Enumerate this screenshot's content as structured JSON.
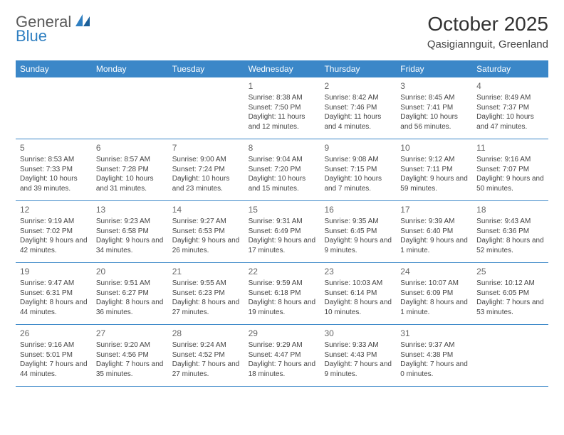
{
  "logo": {
    "text1": "General",
    "text2": "Blue"
  },
  "title": "October 2025",
  "location": "Qasigiannguit, Greenland",
  "colors": {
    "header_bg": "#3b87c8",
    "header_fg": "#ffffff",
    "border": "#3b87c8",
    "text": "#444444",
    "daynum": "#666666",
    "logo_gray": "#5a5a5a",
    "logo_blue": "#2f7fc1",
    "page_bg": "#ffffff"
  },
  "day_names": [
    "Sunday",
    "Monday",
    "Tuesday",
    "Wednesday",
    "Thursday",
    "Friday",
    "Saturday"
  ],
  "weeks": [
    [
      null,
      null,
      null,
      {
        "n": "1",
        "sr": "8:38 AM",
        "ss": "7:50 PM",
        "dl": "11 hours and 12 minutes."
      },
      {
        "n": "2",
        "sr": "8:42 AM",
        "ss": "7:46 PM",
        "dl": "11 hours and 4 minutes."
      },
      {
        "n": "3",
        "sr": "8:45 AM",
        "ss": "7:41 PM",
        "dl": "10 hours and 56 minutes."
      },
      {
        "n": "4",
        "sr": "8:49 AM",
        "ss": "7:37 PM",
        "dl": "10 hours and 47 minutes."
      }
    ],
    [
      {
        "n": "5",
        "sr": "8:53 AM",
        "ss": "7:33 PM",
        "dl": "10 hours and 39 minutes."
      },
      {
        "n": "6",
        "sr": "8:57 AM",
        "ss": "7:28 PM",
        "dl": "10 hours and 31 minutes."
      },
      {
        "n": "7",
        "sr": "9:00 AM",
        "ss": "7:24 PM",
        "dl": "10 hours and 23 minutes."
      },
      {
        "n": "8",
        "sr": "9:04 AM",
        "ss": "7:20 PM",
        "dl": "10 hours and 15 minutes."
      },
      {
        "n": "9",
        "sr": "9:08 AM",
        "ss": "7:15 PM",
        "dl": "10 hours and 7 minutes."
      },
      {
        "n": "10",
        "sr": "9:12 AM",
        "ss": "7:11 PM",
        "dl": "9 hours and 59 minutes."
      },
      {
        "n": "11",
        "sr": "9:16 AM",
        "ss": "7:07 PM",
        "dl": "9 hours and 50 minutes."
      }
    ],
    [
      {
        "n": "12",
        "sr": "9:19 AM",
        "ss": "7:02 PM",
        "dl": "9 hours and 42 minutes."
      },
      {
        "n": "13",
        "sr": "9:23 AM",
        "ss": "6:58 PM",
        "dl": "9 hours and 34 minutes."
      },
      {
        "n": "14",
        "sr": "9:27 AM",
        "ss": "6:53 PM",
        "dl": "9 hours and 26 minutes."
      },
      {
        "n": "15",
        "sr": "9:31 AM",
        "ss": "6:49 PM",
        "dl": "9 hours and 17 minutes."
      },
      {
        "n": "16",
        "sr": "9:35 AM",
        "ss": "6:45 PM",
        "dl": "9 hours and 9 minutes."
      },
      {
        "n": "17",
        "sr": "9:39 AM",
        "ss": "6:40 PM",
        "dl": "9 hours and 1 minute."
      },
      {
        "n": "18",
        "sr": "9:43 AM",
        "ss": "6:36 PM",
        "dl": "8 hours and 52 minutes."
      }
    ],
    [
      {
        "n": "19",
        "sr": "9:47 AM",
        "ss": "6:31 PM",
        "dl": "8 hours and 44 minutes."
      },
      {
        "n": "20",
        "sr": "9:51 AM",
        "ss": "6:27 PM",
        "dl": "8 hours and 36 minutes."
      },
      {
        "n": "21",
        "sr": "9:55 AM",
        "ss": "6:23 PM",
        "dl": "8 hours and 27 minutes."
      },
      {
        "n": "22",
        "sr": "9:59 AM",
        "ss": "6:18 PM",
        "dl": "8 hours and 19 minutes."
      },
      {
        "n": "23",
        "sr": "10:03 AM",
        "ss": "6:14 PM",
        "dl": "8 hours and 10 minutes."
      },
      {
        "n": "24",
        "sr": "10:07 AM",
        "ss": "6:09 PM",
        "dl": "8 hours and 1 minute."
      },
      {
        "n": "25",
        "sr": "10:12 AM",
        "ss": "6:05 PM",
        "dl": "7 hours and 53 minutes."
      }
    ],
    [
      {
        "n": "26",
        "sr": "9:16 AM",
        "ss": "5:01 PM",
        "dl": "7 hours and 44 minutes."
      },
      {
        "n": "27",
        "sr": "9:20 AM",
        "ss": "4:56 PM",
        "dl": "7 hours and 35 minutes."
      },
      {
        "n": "28",
        "sr": "9:24 AM",
        "ss": "4:52 PM",
        "dl": "7 hours and 27 minutes."
      },
      {
        "n": "29",
        "sr": "9:29 AM",
        "ss": "4:47 PM",
        "dl": "7 hours and 18 minutes."
      },
      {
        "n": "30",
        "sr": "9:33 AM",
        "ss": "4:43 PM",
        "dl": "7 hours and 9 minutes."
      },
      {
        "n": "31",
        "sr": "9:37 AM",
        "ss": "4:38 PM",
        "dl": "7 hours and 0 minutes."
      },
      null
    ]
  ],
  "labels": {
    "sunrise": "Sunrise:",
    "sunset": "Sunset:",
    "daylight": "Daylight:"
  }
}
